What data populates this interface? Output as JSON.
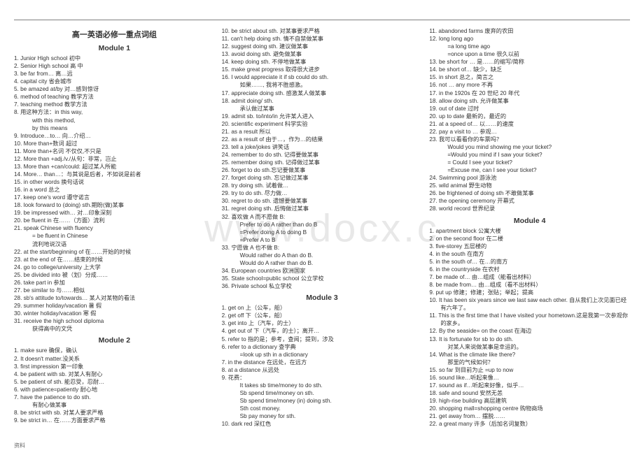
{
  "watermark": "www.docx.c",
  "footer": "资料",
  "main_title": "高一英语必修一重点词组",
  "mod1": "Module 1",
  "mod2": "Module 2",
  "mod3": "Module 3",
  "mod4": "Module 4",
  "c1a": [
    "1.  Junior High school 初中",
    "2.  Senior High school 高 中",
    "3.  be far from… 离…远",
    "4.  capital city 省会城市",
    "5.  be amazed at/by 对…感到惊讶",
    "6.  method of teaching 教学方法",
    "7.  teaching method 教学方法",
    "8.  用这种方法：in this way,"
  ],
  "c1a_sub": [
    "with this method,",
    "by this means"
  ],
  "c1b": [
    "9.  Introduce…to… 向…介绍…",
    "10.  More than+数词   超过",
    "11.  More than+名词 不仅仅,不只是",
    "12.  More than +adj./v./从句：非常，岂止",
    "13.  More than +can/could: 超过某人所能",
    "14.  More… than…：与其说是后者，不如说是前者",
    "15.  in other words 换句话说",
    "16.  in a word 总之",
    "17.  keep one's word 遵守诺言",
    "18.  look forward to (doing) sth.期盼(做)某事",
    "19.  be impressed with… 对…印象深刻",
    "20.  be fluent in 在……（方面）流利",
    "21.  speak Chinese with fluency"
  ],
  "c1b_sub": [
    "= be fluent in Chinese",
    "流利地说汉语"
  ],
  "c1c": [
    "22.  at the start/beginning of 在……开始的时候",
    "23.  at the end of 在……结束的时候",
    "24.  go to college/university    上大学",
    "25.  be divided into   被（划）分成……",
    "26.  take part in 参加",
    "27.  be similar to 与……相似",
    "28.  sb's attitude to/towards… 某人对某物的看法",
    "29.  summer holiday/vacation 暑 假",
    "30.  winter holiday/vacation 寒 假",
    "31.  receive the high school diploma"
  ],
  "c1c_sub": [
    "获得高中的文凭"
  ],
  "c1d": [
    "1.  make sure 确保，确认",
    "2.  It doesn't matter.没关系",
    "3.  first impression 第一印象",
    "4.  be patient with sb. 对某人有耐心",
    "5.  be patient of sth. 能忍受，忍耐…",
    "6.  with patience=patiently 耐心地",
    "7.  have the patience to do sth."
  ],
  "c1d_sub": [
    "有耐心做某事"
  ],
  "c1e": [
    "8.  be strict with sb. 对某人要求严格",
    "9.  be strict in… 在……方面要求严格"
  ],
  "c2a": [
    "10.  be strict about sth. 对某事要求严格",
    "11.  can't help doing sth. 情不自禁做某事",
    "12.  suggest doing sth. 建议做某事",
    "13.  avoid doing sth. 避免做某事",
    "14.  keep doing sth. 不停地做某事",
    "15.  make great progress 取得很大进步",
    "16.  I would appreciate it if sb could do sth."
  ],
  "c2a_sub": [
    "如果……, 我将不胜感激。"
  ],
  "c2b": [
    "17.  appreciate doing sth. 感激某人做某事",
    "18.  admit doing/ sth."
  ],
  "c2b_sub": [
    "承认做过某事"
  ],
  "c2c": [
    "19.  admit sb. to/into/in 允许某人进入",
    "20.  scientific experiment 科学实验",
    "21.  as a result 所以",
    "22.  as a result of 由于…，作为…的结果",
    "23.  tell a joke/jokes 讲笑话",
    "24.  remember to do sth. 记得要做某事",
    "25.  remember doing sth. 记得做过某事",
    "26.  forget to do sth.忘记要做某事",
    "27.  forget doing sth. 忘记做过某事",
    "28.  try doing sth. 试着做…",
    "29.  try to do sth. 尽力做…",
    "30.  regret to do sth. 遗憾要做某事",
    "31.  regret doing sth. 后悔做过某事",
    "32.  喜欢做 A 而不愿做 B:"
  ],
  "c2c_sub": [
    "Prefer to do A rather than do B",
    "=Prefer doing A to doing B",
    "=Prefer A to B"
  ],
  "c2d": [
    "33.  宁愿做 A 也不做 B:"
  ],
  "c2d_sub": [
    "Would rather do A than do B.",
    "Would do A rather than do B."
  ],
  "c2e": [
    "34.  European countries 欧洲国家",
    "35.  State school=public school 公立学校",
    "36.  Private school 私立学校"
  ],
  "c3a": [
    "1.  get on  上（公车，船）",
    "2.  get off  下（公车，船）",
    "3.  get into  上（汽车，的士）",
    "4.  get out of 下（汽车，的士）；离开…",
    "5.  refer to 指的是；参考，查阅；提到，涉及",
    "6.  refer to a dictionary 查字典"
  ],
  "c3a_sub": [
    "=look up sth in a dictionary"
  ],
  "c3b": [
    "7.  in the distance 在远处，在远方",
    "8.  at a distance 从远处",
    "9.  花费："
  ],
  "c3b_sub": [
    "It takes sb time/money to do sth.",
    "Sb spend time/money on sth.",
    "Sb spend time/money (in) doing sth.",
    "Sth cost money.",
    "Sb pay money for sth."
  ],
  "c3c": [
    "10.  dark red 深红色"
  ],
  "c4a": [
    "11.  abandoned farms  废弃的农田",
    "12.  long long ago"
  ],
  "c4a_sub": [
    "=a long time ago",
    "=once upon a time 很久以前"
  ],
  "c4b": [
    "13.  be short for … 是……的缩写/简称",
    "14.  be short of… 缺少，缺乏",
    "15.  in short 总之，简言之",
    "16.  not … any more 不再",
    "17.  in the 1920s 在 20 世纪 20 年代",
    "18.  allow doing sth. 允许做某事",
    "19.  out of date 过时",
    "20.  up to date 最新的，最近的",
    "21.  at a speed of… 以……的速度",
    "22.  pay a visit to … 参观…",
    "23.  我可以看看你的车票吗？"
  ],
  "c4b_sub": [
    "Would you mind showing me your ticket?",
    "=Would you mind if I saw your ticket?",
    "= Could I see your ticket?",
    "=Excuse me, can I see your ticket?"
  ],
  "c4c": [
    "24.  Swimming pool 游泳池",
    "25.  wild animal 野生动物",
    "26.  be frightened of doing sth 不敢做某事",
    "27.  the opening ceremony 开幕式",
    "28.  world record 世界纪录"
  ],
  "c4d": [
    "1.  apartment block 公寓大楼",
    "2.  on the second floor 在二楼",
    "3.  five-storey 五层楼的",
    "4.  in the south 在南方",
    "5.  in the south of… 在…的南方",
    "6.  in the countryside 在农村",
    "7.  be made of… 由…组成（能看出材料）",
    "8.  be made from… 由…组成（看不出材料）",
    "9.    put up 修建；修建；张贴；举起；提高",
    "10.  It has been six years since we last saw each other. 自从我们上次见面已经有六年了。",
    "11.  This is the first time that I have visited your hometown.这是我第一次参观你的家乡。",
    "12.  By the seaside= on the coast 在海边",
    "13.  It is fortunate for sb to do sth."
  ],
  "c4d_sub": [
    "对某人来说做某事是幸运的。"
  ],
  "c4e": [
    "14.  What is the climate like there?"
  ],
  "c4e_sub": [
    "那里的气候如何？"
  ],
  "c4f": [
    "15.  so far  到目前为止   =up to now",
    "16.  sound like…听起来像…",
    "17.  sound as if…听起来好像，似乎…",
    "18.  safe and sound 安然无恙",
    "19.  high-rise building 高层建筑",
    "20.  shopping mall=shopping centre 购物商场",
    "21.  get away from…    摆脱……",
    "22.  a great many    许多（后加名词复数）"
  ]
}
